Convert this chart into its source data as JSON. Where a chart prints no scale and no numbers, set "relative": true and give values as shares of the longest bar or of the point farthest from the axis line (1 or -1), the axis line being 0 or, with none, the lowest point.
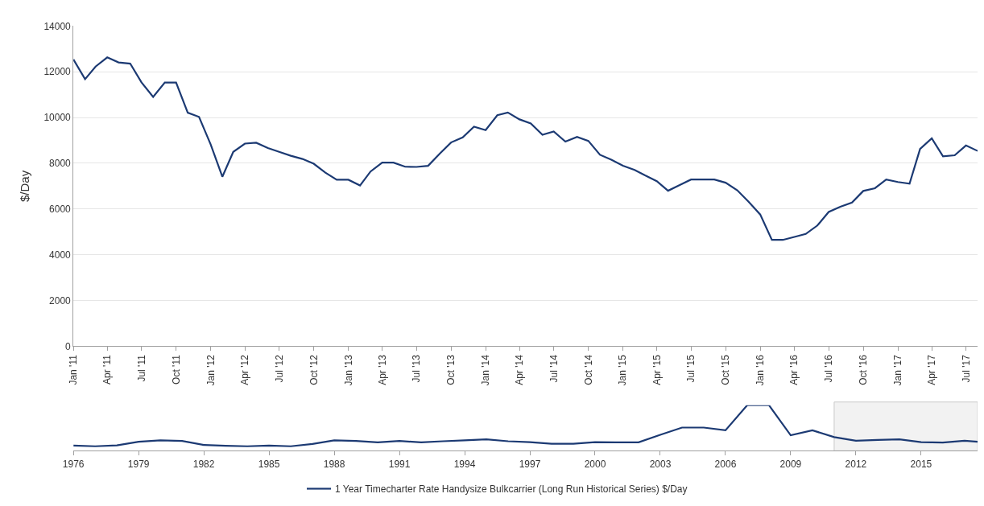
{
  "chart_data": [
    {
      "type": "line",
      "ylabel": "$/Day",
      "grid": "y",
      "legend": "bottom",
      "marker": "none",
      "line_style": "solid",
      "x": [
        "2011-01",
        "2011-02",
        "2011-03",
        "2011-04",
        "2011-05",
        "2011-06",
        "2011-07",
        "2011-08",
        "2011-09",
        "2011-10",
        "2011-11",
        "2011-12",
        "2012-01",
        "2012-02",
        "2012-03",
        "2012-04",
        "2012-05",
        "2012-06",
        "2012-07",
        "2012-08",
        "2012-09",
        "2012-10",
        "2012-11",
        "2012-12",
        "2013-01",
        "2013-02",
        "2013-03",
        "2013-04",
        "2013-05",
        "2013-06",
        "2013-07",
        "2013-08",
        "2013-09",
        "2013-10",
        "2013-11",
        "2013-12",
        "2014-01",
        "2014-02",
        "2014-03",
        "2014-04",
        "2014-05",
        "2014-06",
        "2014-07",
        "2014-08",
        "2014-09",
        "2014-10",
        "2014-11",
        "2014-12",
        "2015-01",
        "2015-02",
        "2015-03",
        "2015-04",
        "2015-05",
        "2015-06",
        "2015-07",
        "2015-08",
        "2015-09",
        "2015-10",
        "2015-11",
        "2015-12",
        "2016-01",
        "2016-02",
        "2016-03",
        "2016-04",
        "2016-05",
        "2016-06",
        "2016-07",
        "2016-08",
        "2016-09",
        "2016-10",
        "2016-11",
        "2016-12",
        "2017-01",
        "2017-02",
        "2017-03",
        "2017-04",
        "2017-05",
        "2017-06",
        "2017-07",
        "2017-08"
      ],
      "series": [
        {
          "name": "1 Year Timecharter Rate Handysize Bulkcarrier (Long Run Historical Series) $/Day",
          "color": "#1c3a73",
          "values": [
            12540,
            11680,
            12230,
            12630,
            12410,
            12360,
            11540,
            10900,
            11530,
            11530,
            10210,
            10030,
            8820,
            7410,
            8500,
            8860,
            8900,
            8670,
            8500,
            8330,
            8190,
            7980,
            7590,
            7280,
            7280,
            7030,
            7640,
            8030,
            8030,
            7850,
            7840,
            7890,
            8420,
            8910,
            9130,
            9600,
            9450,
            10100,
            10220,
            9920,
            9740,
            9250,
            9390,
            8950,
            9150,
            8980,
            8370,
            8160,
            7890,
            7710,
            7470,
            7220,
            6800,
            7050,
            7290,
            7290,
            7290,
            7150,
            6820,
            6320,
            5760,
            4650,
            4650,
            4780,
            4910,
            5280,
            5870,
            6100,
            6280,
            6790,
            6910,
            7290,
            7180,
            7110,
            8630,
            9090,
            8300,
            8350,
            8780,
            8540
          ]
        }
      ],
      "xlim": [
        "2011-01",
        "2017-08"
      ],
      "xticks": [
        {
          "value": "2011-01",
          "label": "Jan '11"
        },
        {
          "value": "2011-04",
          "label": "Apr '11"
        },
        {
          "value": "2011-07",
          "label": "Jul '11"
        },
        {
          "value": "2011-10",
          "label": "Oct '11"
        },
        {
          "value": "2012-01",
          "label": "Jan '12"
        },
        {
          "value": "2012-04",
          "label": "Apr '12"
        },
        {
          "value": "2012-07",
          "label": "Jul '12"
        },
        {
          "value": "2012-10",
          "label": "Oct '12"
        },
        {
          "value": "2013-01",
          "label": "Jan '13"
        },
        {
          "value": "2013-04",
          "label": "Apr '13"
        },
        {
          "value": "2013-07",
          "label": "Jul '13"
        },
        {
          "value": "2013-10",
          "label": "Oct '13"
        },
        {
          "value": "2014-01",
          "label": "Jan '14"
        },
        {
          "value": "2014-04",
          "label": "Apr '14"
        },
        {
          "value": "2014-07",
          "label": "Jul '14"
        },
        {
          "value": "2014-10",
          "label": "Oct '14"
        },
        {
          "value": "2015-01",
          "label": "Jan '15"
        },
        {
          "value": "2015-04",
          "label": "Apr '15"
        },
        {
          "value": "2015-07",
          "label": "Jul '15"
        },
        {
          "value": "2015-10",
          "label": "Oct '15"
        },
        {
          "value": "2016-01",
          "label": "Jan '16"
        },
        {
          "value": "2016-04",
          "label": "Apr '16"
        },
        {
          "value": "2016-07",
          "label": "Jul '16"
        },
        {
          "value": "2016-10",
          "label": "Oct '16"
        },
        {
          "value": "2017-01",
          "label": "Jan '17"
        },
        {
          "value": "2017-04",
          "label": "Apr '17"
        },
        {
          "value": "2017-07",
          "label": "Jul '17"
        }
      ],
      "ylim": [
        0,
        14000
      ],
      "yticks": [
        0,
        2000,
        4000,
        6000,
        8000,
        10000,
        12000,
        14000
      ]
    },
    {
      "type": "line",
      "relative": true,
      "marker": "none",
      "line_style": "solid",
      "x": [
        1976,
        1977,
        1978,
        1979,
        1980,
        1981,
        1982,
        1983,
        1984,
        1985,
        1986,
        1987,
        1988,
        1989,
        1990,
        1991,
        1992,
        1993,
        1994,
        1995,
        1996,
        1997,
        1998,
        1999,
        2000,
        2001,
        2002,
        2003,
        2004,
        2005,
        2006,
        2007,
        2008,
        2009,
        2010,
        2011,
        2012,
        2013,
        2014,
        2015,
        2016,
        2017,
        2017.6
      ],
      "series": [
        {
          "color": "#1c3a73",
          "values": [
            0.115,
            0.1,
            0.12,
            0.2,
            0.23,
            0.215,
            0.13,
            0.11,
            0.1,
            0.115,
            0.1,
            0.15,
            0.23,
            0.215,
            0.185,
            0.215,
            0.185,
            0.21,
            0.23,
            0.25,
            0.21,
            0.19,
            0.155,
            0.155,
            0.19,
            0.185,
            0.185,
            0.35,
            0.51,
            0.51,
            0.45,
            1,
            1,
            0.34,
            0.45,
            0.3,
            0.22,
            0.24,
            0.25,
            0.19,
            0.18,
            0.22,
            0.2
          ]
        }
      ],
      "xlim": [
        1976,
        2017.6
      ],
      "xticks": [
        1976,
        1979,
        1982,
        1985,
        1988,
        1991,
        1994,
        1997,
        2000,
        2003,
        2006,
        2009,
        2012,
        2015
      ],
      "bands": [
        {
          "axis": "x",
          "from": 2011,
          "to": 2017.6,
          "color": "#f2f2f2"
        }
      ]
    }
  ]
}
